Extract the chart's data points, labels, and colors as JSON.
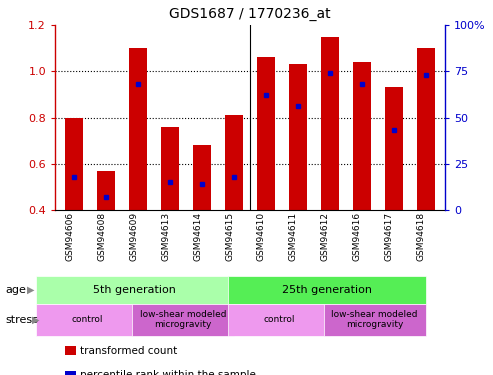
{
  "title": "GDS1687 / 1770236_at",
  "samples": [
    "GSM94606",
    "GSM94608",
    "GSM94609",
    "GSM94613",
    "GSM94614",
    "GSM94615",
    "GSM94610",
    "GSM94611",
    "GSM94612",
    "GSM94616",
    "GSM94617",
    "GSM94618"
  ],
  "transformed_count": [
    0.8,
    0.57,
    1.1,
    0.76,
    0.68,
    0.81,
    1.06,
    1.03,
    1.15,
    1.04,
    0.93,
    1.1
  ],
  "percentile_rank": [
    0.18,
    0.07,
    0.68,
    0.15,
    0.14,
    0.18,
    0.62,
    0.56,
    0.74,
    0.68,
    0.43,
    0.73
  ],
  "y_min": 0.4,
  "y_max": 1.2,
  "y_ticks_left": [
    0.4,
    0.6,
    0.8,
    1.0,
    1.2
  ],
  "y_ticks_right": [
    0,
    25,
    50,
    75,
    100
  ],
  "bar_color": "#cc0000",
  "dot_color": "#0000cc",
  "age_groups": [
    {
      "label": "5th generation",
      "start": 0,
      "end": 6,
      "color": "#aaffaa"
    },
    {
      "label": "25th generation",
      "start": 6,
      "end": 12,
      "color": "#55ee55"
    }
  ],
  "stress_groups": [
    {
      "label": "control",
      "start": 0,
      "end": 3,
      "color": "#ee99ee"
    },
    {
      "label": "low-shear modeled\nmicrogravity",
      "start": 3,
      "end": 6,
      "color": "#cc66cc"
    },
    {
      "label": "control",
      "start": 6,
      "end": 9,
      "color": "#ee99ee"
    },
    {
      "label": "low-shear modeled\nmicrogravity",
      "start": 9,
      "end": 12,
      "color": "#cc66cc"
    }
  ],
  "legend_items": [
    {
      "label": "transformed count",
      "color": "#cc0000"
    },
    {
      "label": "percentile rank within the sample",
      "color": "#0000cc"
    }
  ],
  "age_label": "age",
  "stress_label": "stress"
}
